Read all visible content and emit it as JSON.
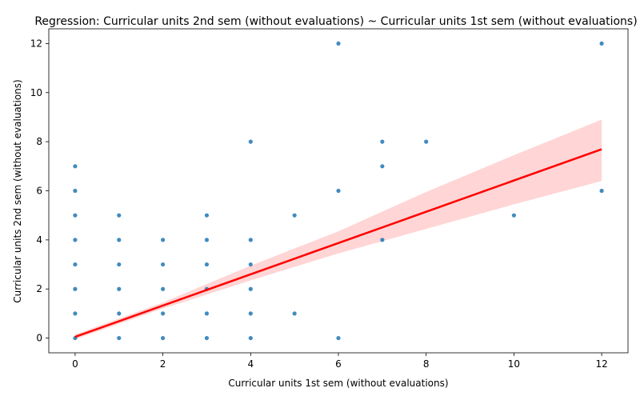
{
  "chart_data": {
    "type": "scatter",
    "title": "Regression: Curricular units 2nd sem (without evaluations) ~ Curricular units 1st sem (without evaluations)",
    "xlabel": "Curricular units 1st sem (without evaluations)",
    "ylabel": "Curricular units 2nd sem (without evaluations)",
    "xlim": [
      -0.6,
      12.6
    ],
    "ylim": [
      -0.6,
      12.6
    ],
    "xticks": [
      0,
      2,
      4,
      6,
      8,
      10,
      12
    ],
    "yticks": [
      0,
      2,
      4,
      6,
      8,
      10,
      12
    ],
    "grid": false,
    "colors": {
      "points": "#1f77b4",
      "line": "#ff0000",
      "band": "#ffb3b3"
    },
    "points": [
      [
        0,
        0
      ],
      [
        0,
        1
      ],
      [
        0,
        2
      ],
      [
        0,
        3
      ],
      [
        0,
        4
      ],
      [
        0,
        5
      ],
      [
        0,
        6
      ],
      [
        0,
        7
      ],
      [
        1,
        0
      ],
      [
        1,
        1
      ],
      [
        1,
        2
      ],
      [
        1,
        3
      ],
      [
        1,
        4
      ],
      [
        1,
        5
      ],
      [
        2,
        0
      ],
      [
        2,
        1
      ],
      [
        2,
        2
      ],
      [
        2,
        3
      ],
      [
        2,
        4
      ],
      [
        3,
        0
      ],
      [
        3,
        1
      ],
      [
        3,
        2
      ],
      [
        3,
        3
      ],
      [
        3,
        4
      ],
      [
        3,
        5
      ],
      [
        4,
        0
      ],
      [
        4,
        1
      ],
      [
        4,
        2
      ],
      [
        4,
        3
      ],
      [
        4,
        4
      ],
      [
        4,
        8
      ],
      [
        5,
        1
      ],
      [
        5,
        5
      ],
      [
        6,
        0
      ],
      [
        6,
        6
      ],
      [
        6,
        12
      ],
      [
        7,
        4
      ],
      [
        7,
        7
      ],
      [
        7,
        8
      ],
      [
        8,
        8
      ],
      [
        10,
        5
      ],
      [
        12,
        6
      ],
      [
        12,
        12
      ]
    ],
    "regression": {
      "slope": 0.637,
      "intercept": 0.05,
      "x_range": [
        0,
        12
      ],
      "ci_band": [
        {
          "x": 0,
          "lower": -0.05,
          "upper": 0.15
        },
        {
          "x": 2,
          "lower": 1.2,
          "upper": 1.45
        },
        {
          "x": 4,
          "lower": 2.35,
          "upper": 2.95
        },
        {
          "x": 6,
          "lower": 3.45,
          "upper": 4.35
        },
        {
          "x": 8,
          "lower": 4.45,
          "upper": 5.95
        },
        {
          "x": 10,
          "lower": 5.45,
          "upper": 7.45
        },
        {
          "x": 12,
          "lower": 6.4,
          "upper": 8.9
        }
      ]
    }
  }
}
